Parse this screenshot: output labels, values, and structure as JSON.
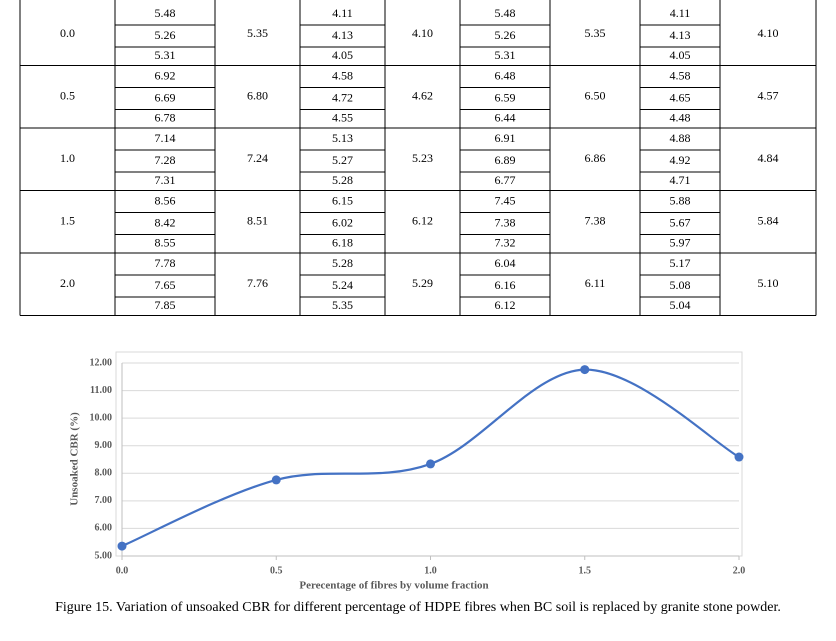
{
  "table": {
    "rows": [
      {
        "fibre": "0.0",
        "groups": [
          {
            "values": [
              "5.48",
              "5.26",
              "5.31"
            ],
            "mean": "5.35"
          },
          {
            "values": [
              "4.11",
              "4.13",
              "4.05"
            ],
            "mean": "4.10"
          },
          {
            "values": [
              "5.48",
              "5.26",
              "5.31"
            ],
            "mean": "5.35"
          },
          {
            "values": [
              "4.11",
              "4.13",
              "4.05"
            ],
            "mean": "4.10"
          }
        ]
      },
      {
        "fibre": "0.5",
        "groups": [
          {
            "values": [
              "6.92",
              "6.69",
              "6.78"
            ],
            "mean": "6.80"
          },
          {
            "values": [
              "4.58",
              "4.72",
              "4.55"
            ],
            "mean": "4.62"
          },
          {
            "values": [
              "6.48",
              "6.59",
              "6.44"
            ],
            "mean": "6.50"
          },
          {
            "values": [
              "4.58",
              "4.65",
              "4.48"
            ],
            "mean": "4.57"
          }
        ]
      },
      {
        "fibre": "1.0",
        "groups": [
          {
            "values": [
              "7.14",
              "7.28",
              "7.31"
            ],
            "mean": "7.24"
          },
          {
            "values": [
              "5.13",
              "5.27",
              "5.28"
            ],
            "mean": "5.23"
          },
          {
            "values": [
              "6.91",
              "6.89",
              "6.77"
            ],
            "mean": "6.86"
          },
          {
            "values": [
              "4.88",
              "4.92",
              "4.71"
            ],
            "mean": "4.84"
          }
        ]
      },
      {
        "fibre": "1.5",
        "groups": [
          {
            "values": [
              "8.56",
              "8.42",
              "8.55"
            ],
            "mean": "8.51"
          },
          {
            "values": [
              "6.15",
              "6.02",
              "6.18"
            ],
            "mean": "6.12"
          },
          {
            "values": [
              "7.45",
              "7.38",
              "7.32"
            ],
            "mean": "7.38"
          },
          {
            "values": [
              "5.88",
              "5.67",
              "5.97"
            ],
            "mean": "5.84"
          }
        ]
      },
      {
        "fibre": "2.0",
        "groups": [
          {
            "values": [
              "7.78",
              "7.65",
              "7.85"
            ],
            "mean": "7.76"
          },
          {
            "values": [
              "5.28",
              "5.24",
              "5.35"
            ],
            "mean": "5.29"
          },
          {
            "values": [
              "6.04",
              "6.16",
              "6.12"
            ],
            "mean": "6.11"
          },
          {
            "values": [
              "5.17",
              "5.08",
              "5.04"
            ],
            "mean": "5.10"
          }
        ]
      }
    ]
  },
  "chart_data": {
    "type": "line",
    "x": [
      0,
      0.5,
      1,
      1.5,
      2
    ],
    "values": [
      5.36,
      7.76,
      8.34,
      11.76,
      8.59
    ],
    "color": "#4472c4",
    "xlim": [
      0,
      2
    ],
    "ylim": [
      5,
      12
    ],
    "xticks": [
      {
        "value": 0,
        "label": "0.0"
      },
      {
        "value": 0.5,
        "label": "0.5"
      },
      {
        "value": 1,
        "label": "1.0"
      },
      {
        "value": 1.5,
        "label": "1.5"
      },
      {
        "value": 2,
        "label": "2.0"
      }
    ],
    "yticks": [
      {
        "value": 5,
        "label": "5.00"
      },
      {
        "value": 6,
        "label": "6.00"
      },
      {
        "value": 7,
        "label": "7.00"
      },
      {
        "value": 8,
        "label": "8.00"
      },
      {
        "value": 9,
        "label": "9.00"
      },
      {
        "value": 10,
        "label": "10.00"
      },
      {
        "value": 11,
        "label": "11.00"
      },
      {
        "value": 12,
        "label": "12.00"
      }
    ],
    "xlabel": "Perecentage of fibres by volume fraction",
    "ylabel": "Unsoaked CBR (%)",
    "grid": true
  },
  "caption": "Figure 15. Variation of unsoaked CBR for different percentage of HDPE fibres when BC soil is replaced by granite stone powder."
}
